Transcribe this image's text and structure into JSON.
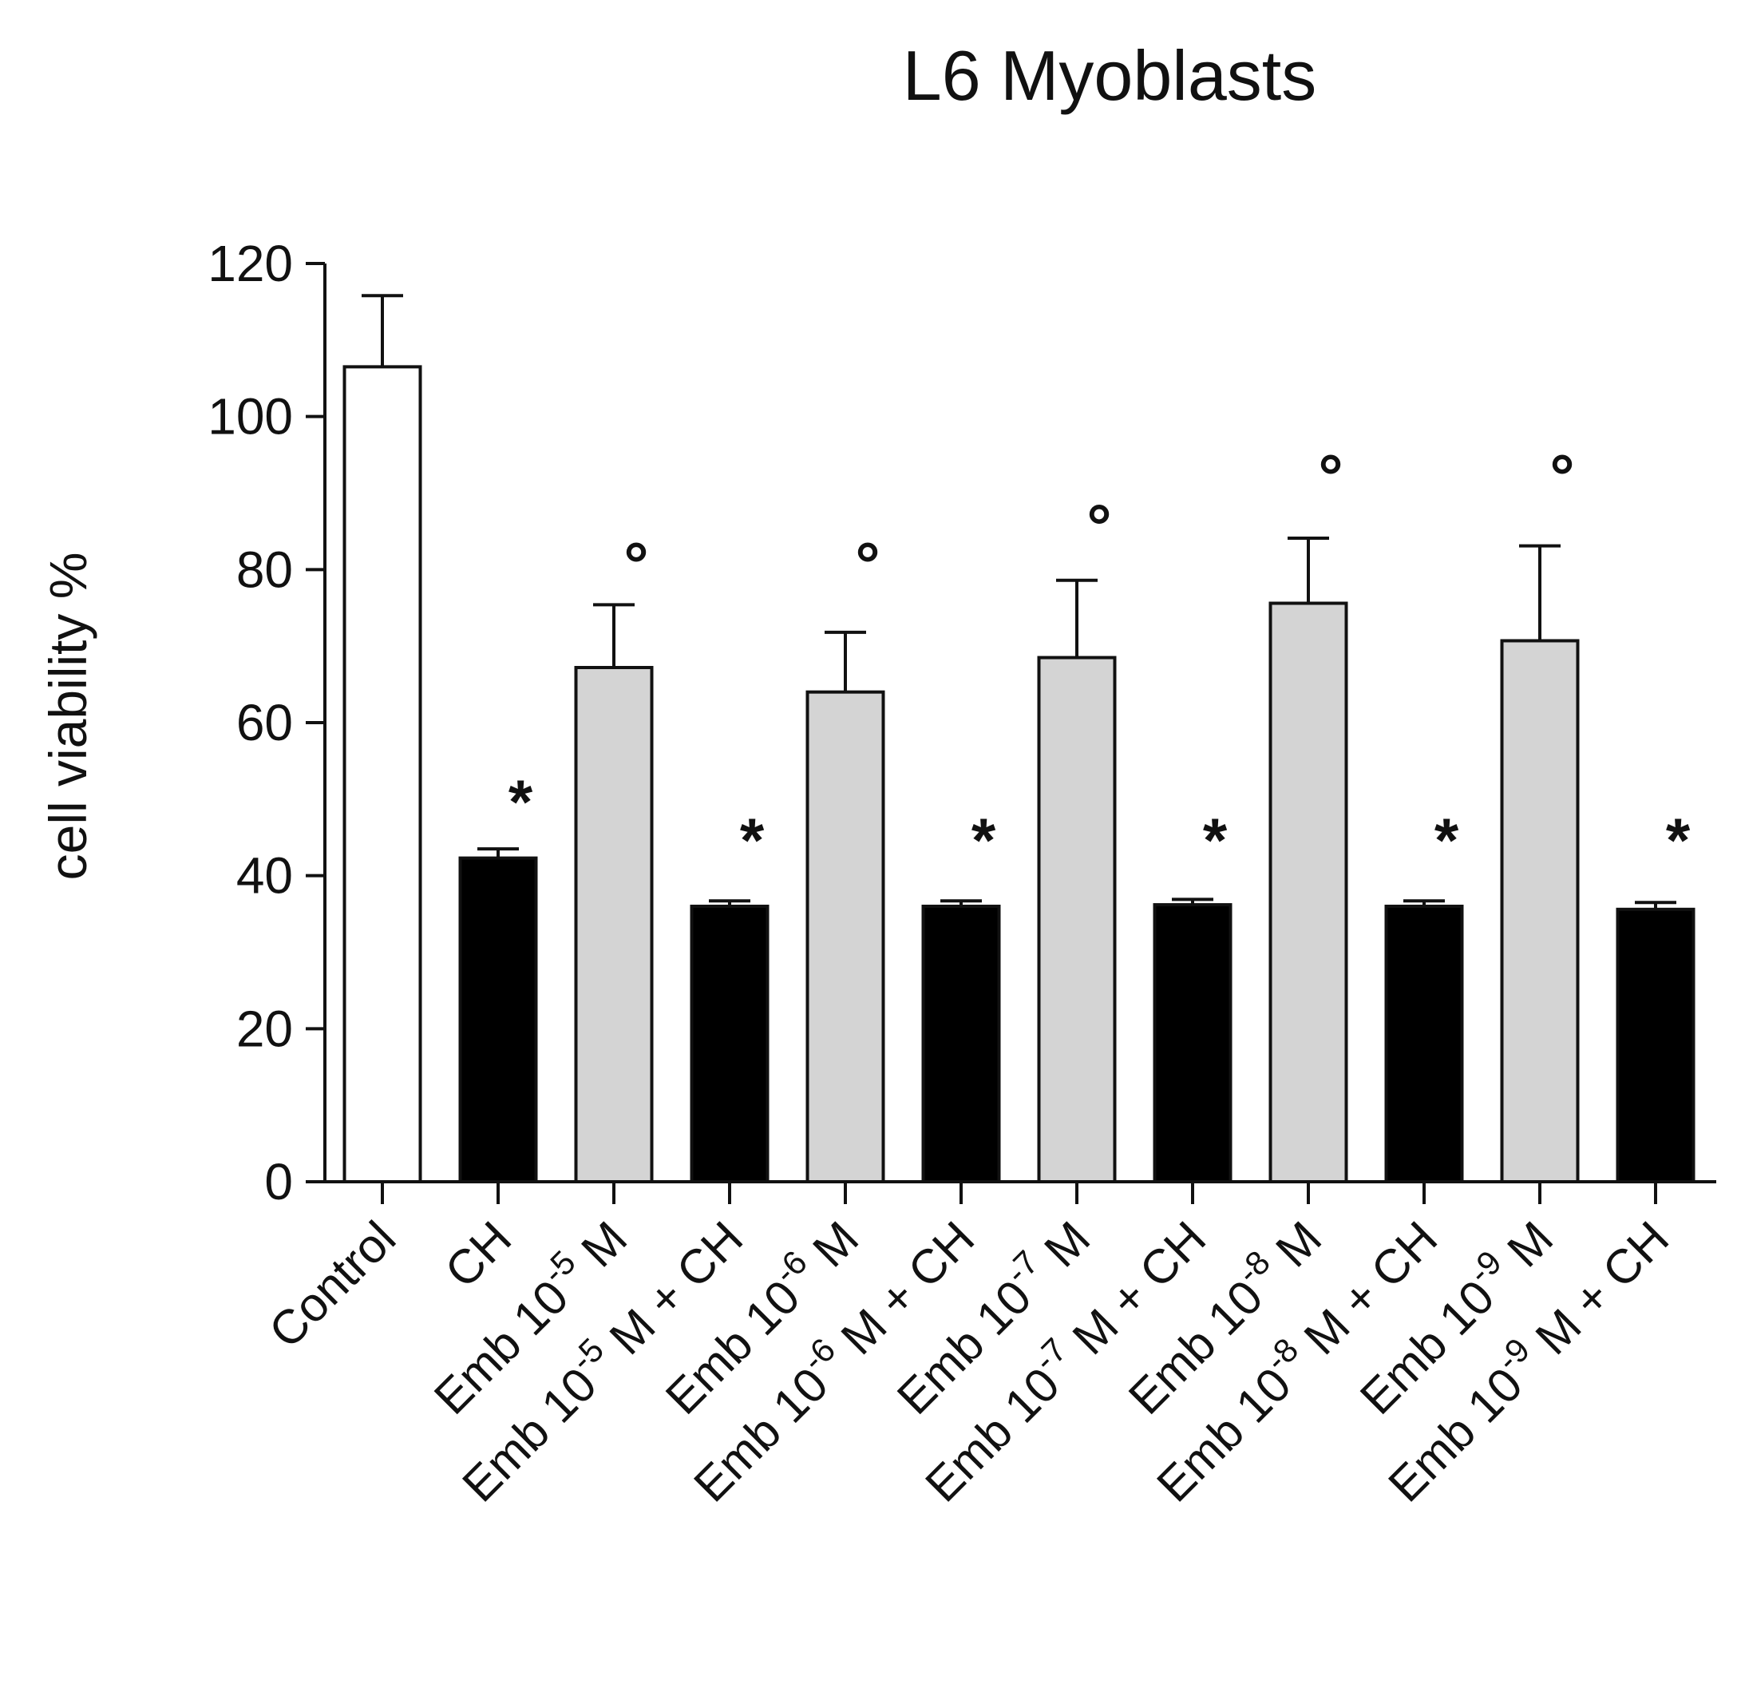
{
  "chart_data": {
    "type": "bar",
    "title": "L6 Myoblasts",
    "xlabel": "",
    "ylabel": "cell viability %",
    "ylim": [
      0,
      120
    ],
    "yticks": [
      0,
      20,
      40,
      60,
      80,
      100,
      120
    ],
    "grid": false,
    "legend": "none",
    "categories": [
      {
        "base": "Control",
        "exp": "",
        "suffix": ""
      },
      {
        "base": "CH",
        "exp": "",
        "suffix": ""
      },
      {
        "base": "Emb 10",
        "exp": "-5",
        "suffix": " M"
      },
      {
        "base": "Emb 10",
        "exp": "-5",
        "suffix": " M + CH"
      },
      {
        "base": "Emb 10",
        "exp": "-6",
        "suffix": " M"
      },
      {
        "base": "Emb 10",
        "exp": "-6",
        "suffix": " M + CH"
      },
      {
        "base": "Emb 10",
        "exp": "-7",
        "suffix": " M"
      },
      {
        "base": "Emb 10",
        "exp": "-7",
        "suffix": " M + CH"
      },
      {
        "base": "Emb 10",
        "exp": "-8",
        "suffix": " M"
      },
      {
        "base": "Emb 10",
        "exp": "-8",
        "suffix": " M + CH"
      },
      {
        "base": "Emb 10",
        "exp": "-9",
        "suffix": " M"
      },
      {
        "base": "Emb 10",
        "exp": "-9",
        "suffix": " M + CH"
      }
    ],
    "values": [
      106.5,
      42.3,
      67.2,
      36.0,
      64.0,
      36.0,
      68.5,
      36.2,
      75.6,
      36.0,
      70.7,
      35.6
    ],
    "errors": [
      9.3,
      1.2,
      8.2,
      0.7,
      7.8,
      0.7,
      10.1,
      0.7,
      8.5,
      0.7,
      12.4,
      0.9
    ],
    "fills": [
      "#ffffff",
      "#000000",
      "#d4d4d4",
      "#000000",
      "#d4d4d4",
      "#000000",
      "#d4d4d4",
      "#000000",
      "#d4d4d4",
      "#000000",
      "#d4d4d4",
      "#000000"
    ],
    "markers": [
      "",
      "*",
      "°",
      "*",
      "°",
      "*",
      "°",
      "*",
      "°",
      "*",
      "°",
      "*"
    ],
    "marker_levels": [
      null,
      50,
      82,
      45,
      82,
      45,
      87,
      45,
      93.5,
      45,
      93.5,
      45
    ]
  },
  "colors": {
    "axis": "#111111",
    "bar_stroke": "#111111",
    "background": "#ffffff"
  }
}
